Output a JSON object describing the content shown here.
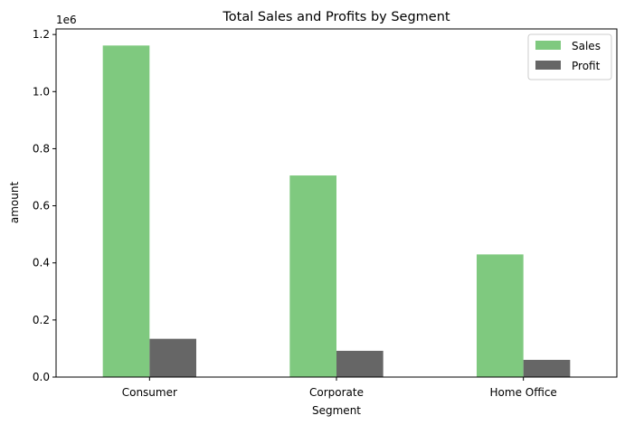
{
  "chart_data": {
    "type": "bar",
    "title": "Total Sales and Profits by Segment",
    "xlabel": "Segment",
    "ylabel": "amount",
    "y_offset_label": "1e6",
    "categories": [
      "Consumer",
      "Corporate",
      "Home Office"
    ],
    "series": [
      {
        "name": "Sales",
        "color": "#7fc97f",
        "values": [
          1161401,
          706146,
          429653
        ]
      },
      {
        "name": "Profit",
        "color": "#666666",
        "values": [
          134119,
          91979,
          60299
        ]
      }
    ],
    "ylim": [
      0,
      1219471
    ],
    "yticks": [
      0,
      200000,
      400000,
      600000,
      800000,
      1000000,
      1200000
    ],
    "ytick_labels": [
      "0.0",
      "0.2",
      "0.4",
      "0.6",
      "0.8",
      "1.0",
      "1.2"
    ],
    "grid": false,
    "legend_position": "top-right"
  }
}
